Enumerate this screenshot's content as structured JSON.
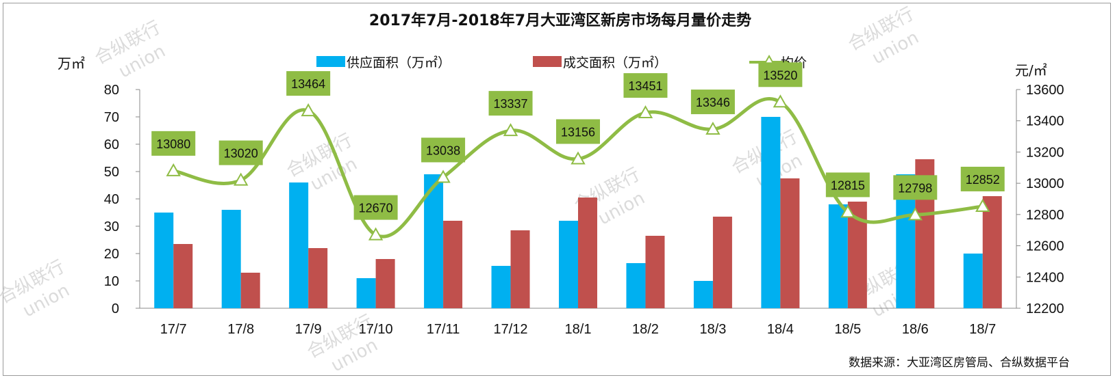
{
  "chart_data": {
    "type": "bar",
    "title": "2017年7月-2018年7月大亚湾区新房市场每月量价走势",
    "categories": [
      "17/7",
      "17/8",
      "17/9",
      "17/10",
      "17/11",
      "17/12",
      "18/1",
      "18/2",
      "18/3",
      "18/4",
      "18/5",
      "18/6",
      "18/7"
    ],
    "series": [
      {
        "name": "供应面积（万㎡）",
        "type": "bar",
        "axis": "left",
        "color": "#00b0f0",
        "values": [
          35,
          36,
          46,
          11,
          49,
          15.5,
          32,
          16.5,
          10,
          70,
          38,
          49,
          20
        ]
      },
      {
        "name": "成交面积（万㎡）",
        "type": "bar",
        "axis": "right-none",
        "color": "#c0504d",
        "values": [
          23.5,
          13,
          22,
          18,
          32,
          28.5,
          40.5,
          26.5,
          33.5,
          47.5,
          39,
          54.5,
          41
        ]
      },
      {
        "name": "均价",
        "type": "line",
        "axis": "right",
        "color": "#8fbc45",
        "values": [
          13080,
          13020,
          13464,
          12670,
          13038,
          13337,
          13156,
          13451,
          13346,
          13520,
          12815,
          12798,
          12852
        ]
      }
    ],
    "left_axis": {
      "unit": "万㎡",
      "ylim": [
        0,
        80
      ],
      "ticks": [
        "0",
        "10",
        "20",
        "30",
        "40",
        "50",
        "60",
        "70",
        "80"
      ]
    },
    "right_axis": {
      "unit": "元/㎡",
      "ylim": [
        12200,
        13600
      ],
      "ticks": [
        "12200",
        "12400",
        "12600",
        "12800",
        "13000",
        "13200",
        "13400",
        "13600"
      ]
    },
    "legend_position": "top",
    "grid": false,
    "source": "数据来源：大亚湾区房管局、合纵数据平台"
  },
  "watermark": {
    "text": "合纵联行",
    "subtext": "union"
  }
}
